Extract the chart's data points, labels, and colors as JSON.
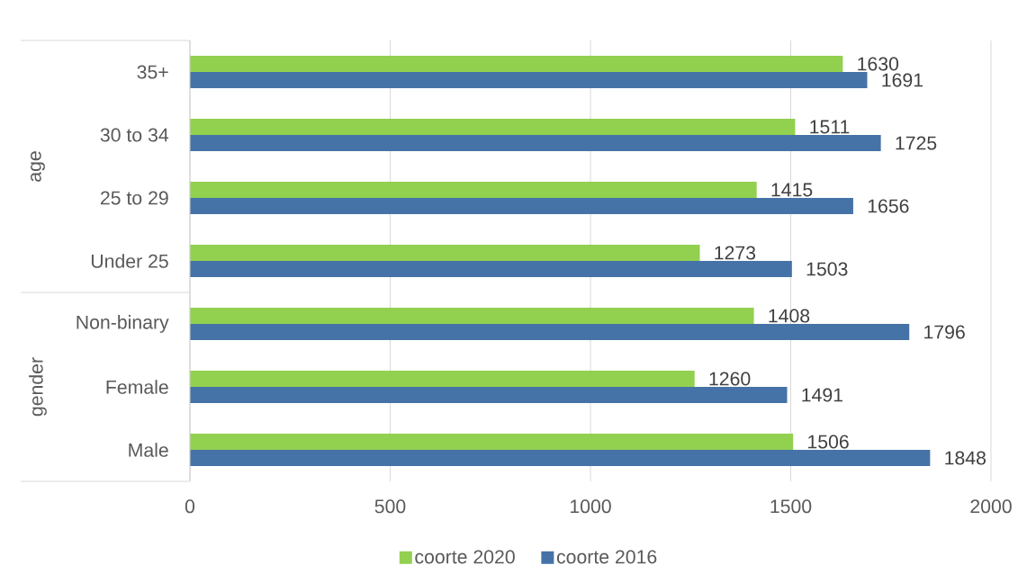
{
  "chart_data": {
    "type": "bar",
    "orientation": "horizontal",
    "categories": [
      "35+",
      "30 to 34",
      "25 to 29",
      "Under 25",
      "Non-binary",
      "Female",
      "Male"
    ],
    "series": [
      {
        "name": "coorte 2020",
        "color": "#92d050",
        "values": [
          1630,
          1511,
          1415,
          1273,
          1408,
          1260,
          1506
        ]
      },
      {
        "name": "coorte 2016",
        "color": "#4673a7",
        "values": [
          1691,
          1725,
          1656,
          1503,
          1796,
          1491,
          1848
        ]
      }
    ],
    "xlim": [
      0,
      2000
    ],
    "xticks": [
      0,
      500,
      1000,
      1500,
      2000
    ],
    "grid": "x",
    "legend": "bottom",
    "data_labels": true,
    "annotations": [
      "age",
      "gender"
    ]
  }
}
